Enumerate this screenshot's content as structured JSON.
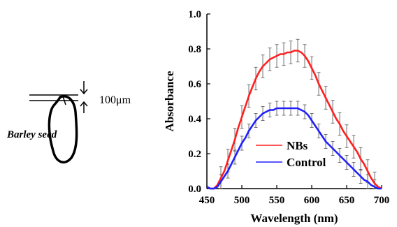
{
  "diagram": {
    "scale_label": "100μm",
    "seed_label": "Barley seed"
  },
  "chart_data": {
    "type": "line",
    "xlabel": "Wavelength (nm)",
    "ylabel": "Absorbance",
    "xlim": [
      450,
      700
    ],
    "ylim": [
      0.0,
      1.0
    ],
    "xticks": [
      450,
      500,
      550,
      600,
      650,
      700
    ],
    "yticks": [
      "0.0",
      "0.2",
      "0.4",
      "0.6",
      "0.8",
      "1.0"
    ],
    "grid": false,
    "legend_position": "bottom-center",
    "series": [
      {
        "name": "NBs",
        "color": "#ff2020",
        "x": [
          450,
          455,
          460,
          465,
          470,
          475,
          480,
          485,
          490,
          495,
          500,
          505,
          510,
          515,
          520,
          525,
          530,
          535,
          540,
          545,
          550,
          555,
          560,
          565,
          570,
          575,
          580,
          585,
          590,
          595,
          600,
          605,
          610,
          615,
          620,
          625,
          630,
          635,
          640,
          645,
          650,
          655,
          660,
          665,
          670,
          675,
          680,
          685,
          690,
          695,
          700
        ],
        "y": [
          0.01,
          0.0,
          0.0,
          0.02,
          0.06,
          0.1,
          0.16,
          0.22,
          0.28,
          0.35,
          0.41,
          0.47,
          0.53,
          0.58,
          0.63,
          0.67,
          0.7,
          0.72,
          0.74,
          0.75,
          0.76,
          0.77,
          0.77,
          0.78,
          0.78,
          0.79,
          0.79,
          0.78,
          0.76,
          0.73,
          0.69,
          0.65,
          0.6,
          0.56,
          0.52,
          0.48,
          0.44,
          0.4,
          0.37,
          0.33,
          0.3,
          0.27,
          0.24,
          0.21,
          0.17,
          0.14,
          0.1,
          0.06,
          0.03,
          0.01,
          0.0
        ],
        "error": 0.065
      },
      {
        "name": "Control",
        "color": "#2020ff",
        "x": [
          450,
          455,
          460,
          465,
          470,
          475,
          480,
          485,
          490,
          495,
          500,
          505,
          510,
          515,
          520,
          525,
          530,
          535,
          540,
          545,
          550,
          555,
          560,
          565,
          570,
          575,
          580,
          585,
          590,
          595,
          600,
          605,
          610,
          615,
          620,
          625,
          630,
          635,
          640,
          645,
          650,
          655,
          660,
          665,
          670,
          675,
          680,
          685,
          690,
          695,
          700
        ],
        "y": [
          0.01,
          0.0,
          0.0,
          0.01,
          0.04,
          0.07,
          0.1,
          0.14,
          0.18,
          0.22,
          0.26,
          0.29,
          0.33,
          0.36,
          0.39,
          0.41,
          0.43,
          0.44,
          0.45,
          0.45,
          0.46,
          0.46,
          0.46,
          0.46,
          0.46,
          0.46,
          0.46,
          0.45,
          0.44,
          0.42,
          0.39,
          0.36,
          0.33,
          0.3,
          0.27,
          0.25,
          0.23,
          0.21,
          0.19,
          0.17,
          0.15,
          0.13,
          0.11,
          0.09,
          0.07,
          0.05,
          0.04,
          0.02,
          0.01,
          0.0,
          0.0
        ],
        "error": 0.04
      }
    ]
  }
}
